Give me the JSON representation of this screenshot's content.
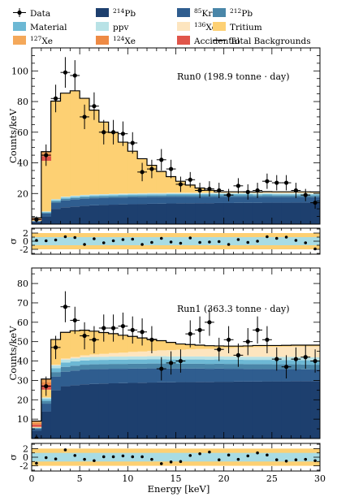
{
  "legend": [
    {
      "key": "data",
      "label": "Data",
      "kind": "marker",
      "color": "#000000"
    },
    {
      "key": "pb214",
      "pre": "",
      "sup": "214",
      "post": "Pb",
      "kind": "box",
      "color": "#1d3f6e"
    },
    {
      "key": "kr85",
      "pre": "",
      "sup": "85",
      "post": "Kr",
      "kind": "box",
      "color": "#2f5d8f"
    },
    {
      "key": "pb212",
      "pre": "",
      "sup": "212",
      "post": "Pb",
      "kind": "box",
      "color": "#4a86a8"
    },
    {
      "key": "material",
      "label": "Material",
      "kind": "box",
      "color": "#6db8d4"
    },
    {
      "key": "ppv",
      "label": "ppv",
      "kind": "box",
      "color": "#b8e2e6"
    },
    {
      "key": "xe136",
      "pre": "",
      "sup": "136",
      "post": "Xe",
      "kind": "box",
      "color": "#fde5bf"
    },
    {
      "key": "tritium",
      "label": "Tritium",
      "kind": "box",
      "color": "#fdd073"
    },
    {
      "key": "xe127",
      "pre": "",
      "sup": "127",
      "post": "Xe",
      "kind": "box",
      "color": "#f4a85a"
    },
    {
      "key": "xe124",
      "pre": "",
      "sup": "124",
      "post": "Xe",
      "kind": "box",
      "color": "#ee8a44"
    },
    {
      "key": "accidental",
      "label": "Accidental",
      "kind": "box",
      "color": "#e0554a"
    },
    {
      "key": "total",
      "label": "Total Backgrounds",
      "kind": "line",
      "color": "#000000"
    }
  ],
  "chart_data": [
    {
      "type": "area",
      "name": "Run0",
      "annotation": "Run0 (198.9 tonne · day)",
      "ylabel": "Counts/keV",
      "xlim": [
        0,
        30
      ],
      "ylim": [
        0,
        115
      ],
      "yticks": [
        20,
        40,
        60,
        80,
        100
      ],
      "bins": [
        0,
        1,
        2,
        3,
        4,
        5,
        6,
        7,
        8,
        9,
        10,
        11,
        12,
        13,
        14,
        15,
        16,
        17,
        18,
        19,
        20,
        21,
        22,
        23,
        24,
        25,
        26,
        27,
        28,
        29,
        30
      ],
      "stack_order": [
        "pb214",
        "kr85",
        "pb212",
        "material",
        "ppv",
        "xe136",
        "tritium"
      ],
      "series": {
        "pb214": [
          1.5,
          5,
          10,
          11,
          11.5,
          12,
          12.3,
          12.5,
          12.7,
          12.9,
          13,
          13.2,
          13.3,
          13.4,
          13.5,
          13.6,
          13.6,
          13.7,
          13.7,
          13.8,
          13.8,
          13.9,
          13.9,
          13.9,
          14,
          14,
          14,
          14.1,
          14.1,
          14.1
        ],
        "kr85": [
          0.3,
          2,
          4,
          4.5,
          4.6,
          4.6,
          4.6,
          4.6,
          4.5,
          4.5,
          4.5,
          4.4,
          4.4,
          4.3,
          4.3,
          4.2,
          4.2,
          4.1,
          4.1,
          4,
          4,
          3.9,
          3.9,
          3.8,
          3.8,
          3.7,
          3.7,
          3.6,
          3.6,
          3.5
        ],
        "pb212": [
          0.1,
          0.5,
          0.9,
          1,
          1,
          1,
          1,
          1,
          1,
          1,
          1,
          1,
          1,
          1,
          1,
          1,
          1,
          1,
          1,
          1,
          1,
          1,
          1,
          1,
          1,
          1,
          1,
          1,
          1,
          1
        ],
        "material": [
          0.1,
          0.5,
          0.8,
          0.8,
          0.8,
          0.8,
          0.8,
          0.8,
          0.8,
          0.8,
          0.8,
          0.8,
          0.8,
          0.8,
          0.8,
          0.8,
          0.8,
          0.8,
          0.8,
          0.8,
          0.8,
          0.8,
          0.8,
          0.8,
          0.8,
          0.8,
          0.8,
          0.8,
          0.8,
          0.8
        ],
        "ppv": [
          0.1,
          0.3,
          0.6,
          0.6,
          0.6,
          0.6,
          0.6,
          0.6,
          0.6,
          0.6,
          0.6,
          0.6,
          0.6,
          0.6,
          0.6,
          0.6,
          0.6,
          0.6,
          0.6,
          0.6,
          0.6,
          0.6,
          0.6,
          0.6,
          0.6,
          0.6,
          0.6,
          0.6,
          0.6,
          0.6
        ],
        "xe136": [
          0,
          0,
          0,
          0.1,
          0.1,
          0.1,
          0.1,
          0.1,
          0.2,
          0.2,
          0.2,
          0.2,
          0.3,
          0.3,
          0.3,
          0.3,
          0.3,
          0.4,
          0.4,
          0.4,
          0.4,
          0.4,
          0.4,
          0.4,
          0.5,
          0.5,
          0.5,
          0.5,
          0.5,
          0.5
        ],
        "tritium": [
          0.5,
          33,
          64,
          67.5,
          68.4,
          63,
          55,
          47,
          40,
          33.5,
          27.5,
          22.5,
          18,
          14,
          10.5,
          7.5,
          5,
          3,
          1.5,
          0.5,
          0.5,
          0.5,
          0.5,
          0.5,
          0.5,
          0.5,
          0.5,
          0.5,
          0.5,
          0.5
        ]
      },
      "thin_bands": [
        {
          "x": [
            0,
            1
          ],
          "layers": [
            {
              "key": "accidental",
              "value": 0.6
            },
            {
              "key": "xe124",
              "value": 0.4
            },
            {
              "key": "xe127",
              "value": 0.5
            }
          ]
        },
        {
          "x": [
            1,
            2
          ],
          "layers": [
            {
              "key": "accidental",
              "value": 3
            },
            {
              "key": "xe124",
              "value": 1.5
            },
            {
              "key": "xe127",
              "value": 1.5
            }
          ]
        }
      ],
      "data": {
        "x": [
          0.5,
          1.5,
          2.5,
          3.5,
          4.5,
          5.5,
          6.5,
          7.5,
          8.5,
          9.5,
          10.5,
          11.5,
          12.5,
          13.5,
          14.5,
          15.5,
          16.5,
          17.5,
          18.5,
          19.5,
          20.5,
          21.5,
          22.5,
          23.5,
          24.5,
          25.5,
          26.5,
          27.5,
          28.5,
          29.5
        ],
        "y": [
          3,
          45,
          82,
          99,
          97,
          70,
          77,
          60,
          60,
          59,
          53,
          34,
          36,
          42,
          36,
          26,
          29,
          22,
          23,
          22,
          19,
          25,
          21,
          22,
          28,
          27,
          27,
          22,
          19,
          14
        ],
        "err": [
          2,
          7,
          9,
          10,
          10,
          8,
          9,
          8,
          8,
          8,
          7,
          6,
          6,
          7,
          6,
          5,
          5,
          5,
          5,
          5,
          4,
          5,
          5,
          5,
          5,
          5,
          5,
          5,
          4,
          4
        ]
      },
      "residual": {
        "ylim": [
          -3.2,
          3.2
        ],
        "yticks": [
          -2,
          0,
          2
        ],
        "ylabel": "σ",
        "y": [
          0.2,
          0.1,
          0.3,
          1.1,
          0.9,
          -0.8,
          0.6,
          -0.4,
          0.1,
          0.4,
          0.5,
          -0.8,
          -0.3,
          0.7,
          -0.2,
          -0.5,
          0.8,
          -0.3,
          -0.2,
          -0.1,
          -0.8,
          0.4,
          -0.3,
          0,
          1.1,
          0.7,
          1,
          0.2,
          -0.4,
          -1.9
        ]
      }
    },
    {
      "type": "area",
      "name": "Run1",
      "annotation": "Run1 (363.3 tonne · day)",
      "ylabel": "Counts/keV",
      "xlim": [
        0,
        30
      ],
      "ylim": [
        0,
        88
      ],
      "yticks": [
        10,
        20,
        30,
        40,
        50,
        60,
        70,
        80
      ],
      "bins": [
        0,
        1,
        2,
        3,
        4,
        5,
        6,
        7,
        8,
        9,
        10,
        11,
        12,
        13,
        14,
        15,
        16,
        17,
        18,
        19,
        20,
        21,
        22,
        23,
        24,
        25,
        26,
        27,
        28,
        29,
        30
      ],
      "stack_order": [
        "pb214",
        "kr85",
        "pb212",
        "material",
        "ppv",
        "xe136",
        "tritium"
      ],
      "series": {
        "pb214": [
          4,
          14,
          25,
          27,
          27.5,
          28,
          28.2,
          28.4,
          28.5,
          28.6,
          28.7,
          28.8,
          28.9,
          29,
          29,
          29.1,
          29.1,
          29.2,
          29.2,
          29.3,
          29.3,
          29.4,
          29.4,
          29.4,
          29.5,
          29.5,
          29.5,
          29.6,
          29.6,
          29.6
        ],
        "kr85": [
          1,
          4,
          7,
          7.5,
          7.6,
          7.6,
          7.6,
          7.5,
          7.5,
          7.4,
          7.4,
          7.3,
          7.3,
          7.2,
          7.1,
          7,
          7,
          6.9,
          6.8,
          6.8,
          6.7,
          6.6,
          6.5,
          6.5,
          6.4,
          6.3,
          6.3,
          6.2,
          6.1,
          6
        ],
        "pb212": [
          0.3,
          1.3,
          2.3,
          2.5,
          2.5,
          2.5,
          2.5,
          2.5,
          2.5,
          2.5,
          2.5,
          2.5,
          2.5,
          2.5,
          2.5,
          2.5,
          2.5,
          2.5,
          2.5,
          2.5,
          2.5,
          2.5,
          2.5,
          2.5,
          2.5,
          2.5,
          2.5,
          2.5,
          2.5,
          2.5
        ],
        "material": [
          0.2,
          1,
          2,
          2.2,
          2.2,
          2.2,
          2.2,
          2.2,
          2.2,
          2.2,
          2.2,
          2.2,
          2.2,
          2.2,
          2.2,
          2.2,
          2.2,
          2.2,
          2.2,
          2.2,
          2.2,
          2.2,
          2.2,
          2.2,
          2.2,
          2.2,
          2.2,
          2.2,
          2.2,
          2.2
        ],
        "ppv": [
          0.2,
          0.8,
          1.5,
          1.6,
          1.6,
          1.6,
          1.6,
          1.6,
          1.6,
          1.6,
          1.6,
          1.6,
          1.6,
          1.6,
          1.6,
          1.6,
          1.6,
          1.6,
          1.6,
          1.6,
          1.6,
          1.6,
          1.6,
          1.6,
          1.6,
          1.6,
          1.6,
          1.6,
          1.6,
          1.6
        ],
        "xe136": [
          0,
          0.1,
          0.3,
          0.5,
          0.7,
          1,
          1.3,
          1.5,
          1.8,
          2,
          2.3,
          2.5,
          2.7,
          3,
          3.2,
          3.4,
          3.6,
          3.8,
          4,
          4.2,
          4.4,
          4.6,
          4.8,
          5,
          5.1,
          5.2,
          5.3,
          5.4,
          5.5,
          5.6
        ],
        "tritium": [
          0.3,
          4,
          13,
          13.5,
          13.5,
          13,
          12,
          11,
          10,
          9,
          8,
          7,
          6,
          5,
          4,
          3,
          2.5,
          2,
          1.6,
          1.2,
          1,
          0.8,
          0.8,
          0.8,
          0.7,
          0.7,
          0.7,
          0.7,
          0.7,
          0.7
        ]
      },
      "thin_bands": [
        {
          "x": [
            0,
            1
          ],
          "layers": [
            {
              "key": "accidental",
              "value": 1.2
            },
            {
              "key": "xe124",
              "value": 0.8
            },
            {
              "key": "xe127",
              "value": 1
            }
          ]
        },
        {
          "x": [
            1,
            2
          ],
          "layers": [
            {
              "key": "accidental",
              "value": 2.5
            },
            {
              "key": "xe124",
              "value": 1.5
            },
            {
              "key": "xe127",
              "value": 1.5
            }
          ]
        }
      ],
      "data": {
        "x": [
          0.5,
          1.5,
          2.5,
          3.5,
          4.5,
          5.5,
          6.5,
          7.5,
          8.5,
          9.5,
          10.5,
          11.5,
          12.5,
          13.5,
          14.5,
          15.5,
          16.5,
          17.5,
          18.5,
          19.5,
          20.5,
          21.5,
          22.5,
          23.5,
          24.5,
          25.5,
          26.5,
          27.5,
          28.5,
          29.5
        ],
        "y": [
          0,
          27,
          47,
          68,
          61,
          53,
          51,
          57,
          57,
          58,
          56,
          55,
          51,
          36,
          39,
          40,
          54,
          56,
          60,
          46,
          51,
          43,
          50,
          56,
          51,
          41,
          37,
          41,
          42,
          40
        ],
        "err": [
          2,
          5,
          6,
          8,
          7,
          7,
          7,
          7,
          7,
          7,
          7,
          7,
          7,
          6,
          6,
          6,
          7,
          7,
          7,
          6,
          7,
          6,
          7,
          7,
          7,
          6,
          6,
          6,
          6,
          6
        ]
      },
      "residual": {
        "ylim": [
          -3.2,
          3.2
        ],
        "yticks": [
          -2,
          0,
          2
        ],
        "ylabel": "σ",
        "y": [
          -1.4,
          -0.1,
          -0.4,
          1.7,
          0.4,
          -0.5,
          -0.8,
          0.1,
          0.1,
          0.3,
          0.1,
          0.1,
          -0.5,
          -1.5,
          -1.1,
          -1,
          0.4,
          0.8,
          1.2,
          -0.6,
          0.5,
          -0.5,
          0.3,
          1,
          0.5,
          -0.6,
          -0.9,
          -0.6,
          -0.5,
          -0.8
        ]
      }
    }
  ],
  "xaxis": {
    "label": "Energy [keV]",
    "ticks": [
      0,
      5,
      10,
      15,
      20,
      25,
      30
    ],
    "minor_step": 1
  },
  "residual_bands": {
    "sigma1_color": "#a8dce4",
    "sigma2_color": "#fdd073"
  }
}
